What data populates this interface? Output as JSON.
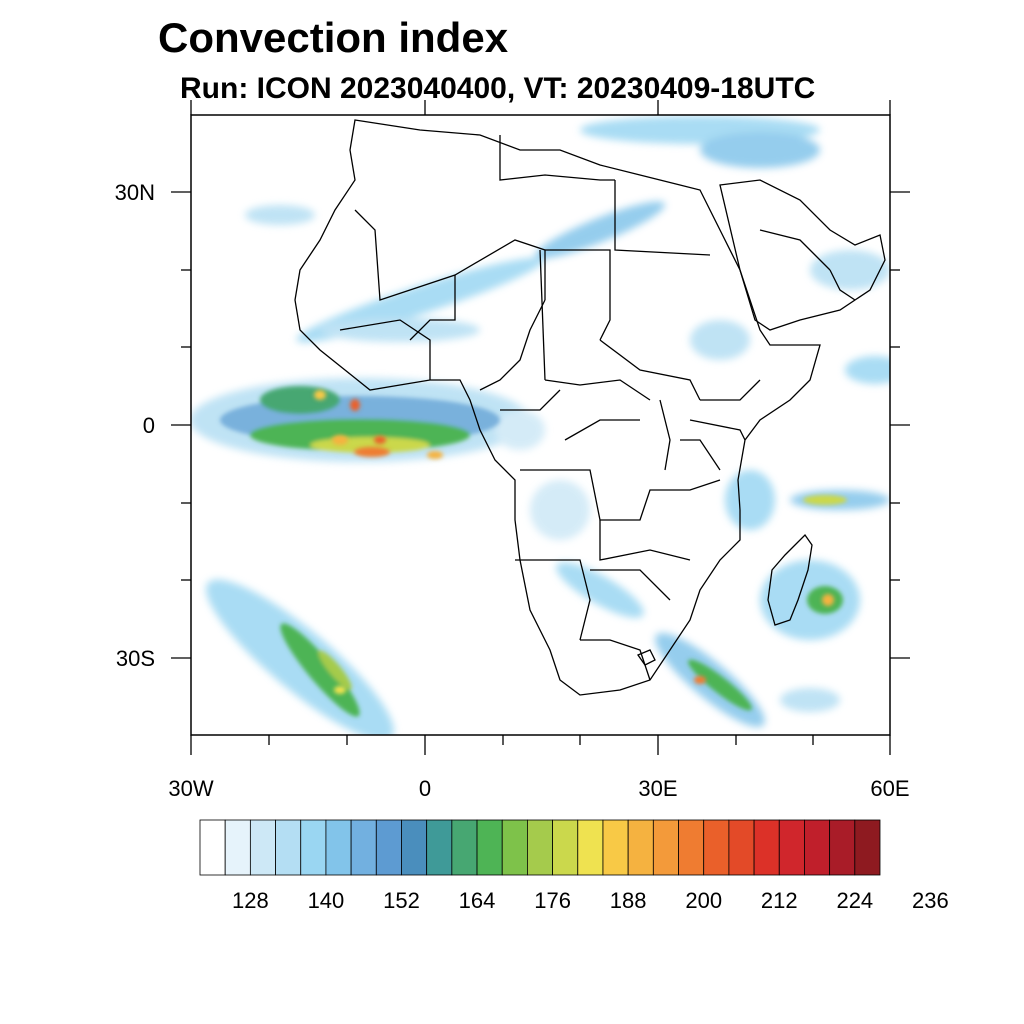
{
  "title": "Convection index",
  "subtitle": "Run: ICON 2023040400,  VT: 20230409-18UTC",
  "map": {
    "lon_range": [
      -30,
      60
    ],
    "lat_range": [
      -40,
      40
    ],
    "lat_labels": [
      "30N",
      "0",
      "30S"
    ],
    "lon_labels": [
      "30W",
      "0",
      "30E",
      "60E"
    ]
  },
  "colorbar": {
    "colors": [
      "#ffffff",
      "#e6f3fb",
      "#cde8f6",
      "#b4def3",
      "#9ad6f2",
      "#82c4ea",
      "#72b0e0",
      "#5d9bd2",
      "#4a8ebd",
      "#3f9a98",
      "#47a772",
      "#4eb455",
      "#7ec24a",
      "#a5cb4c",
      "#cbd84c",
      "#efe250",
      "#f8c946",
      "#f5b240",
      "#f39a3a",
      "#ef7c31",
      "#ea602a",
      "#e34a28",
      "#dc3128",
      "#d0262c",
      "#c01f2b",
      "#a91c28",
      "#8e1a20"
    ],
    "labels": [
      "128",
      "140",
      "152",
      "164",
      "176",
      "188",
      "200",
      "212",
      "224",
      "236"
    ]
  }
}
